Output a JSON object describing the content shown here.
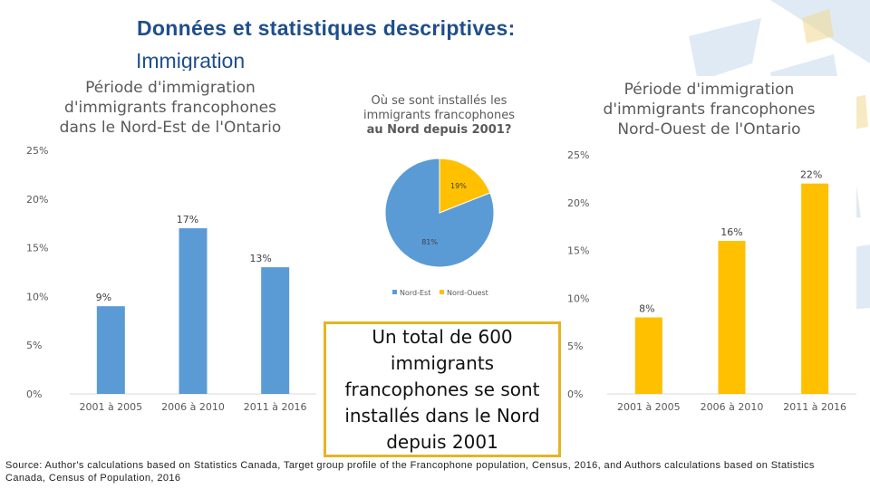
{
  "slide": {
    "title": "Données et statistiques descriptives:",
    "subtitle": "Immigration"
  },
  "callout": {
    "text": "Un total de 600 immigrants francophones se sont installés dans le Nord depuis 2001"
  },
  "source": {
    "text": "Source: Author's calculations based on Statistics Canada, Target group profile of the Francophone population, Census, 2016, and Authors calculations based on Statistics Canada, Census of Population, 2016"
  },
  "colors": {
    "blue": "#5b9bd5",
    "yellow": "#ffc000",
    "title": "#1f4e8c",
    "callout_border": "#e6b422"
  },
  "chart_data": [
    {
      "type": "bar",
      "title": "Période d'immigration d'immigrants francophones dans le Nord-Est de l'Ontario",
      "title_lines": [
        "Période d'immigration",
        "d'immigrants francophones",
        "dans le Nord-Est de l'Ontario"
      ],
      "categories": [
        "2001 à 2005",
        "2006 à 2010",
        "2011 à 2016"
      ],
      "values": [
        9,
        17,
        13
      ],
      "data_labels": [
        "9%",
        "17%",
        "13%"
      ],
      "ylim": [
        0,
        25
      ],
      "yticks": [
        0,
        5,
        10,
        15,
        20,
        25
      ],
      "ytick_labels": [
        "0%",
        "5%",
        "10%",
        "15%",
        "20%",
        "25%"
      ],
      "color": "#5b9bd5",
      "grid": false
    },
    {
      "type": "pie",
      "title": "Où se sont installés les immigrants francophones au Nord depuis 2001?",
      "title_lines": [
        "Où se sont installés les",
        "immigrants francophones",
        "au Nord depuis 2001?"
      ],
      "labels": [
        "Nord-Est",
        "Nord-Ouest"
      ],
      "values": [
        81,
        19
      ],
      "data_labels": [
        "81%",
        "19%"
      ],
      "colors": [
        "#5b9bd5",
        "#ffc000"
      ],
      "legend": "bottom"
    },
    {
      "type": "bar",
      "title": "Période d'immigration d'immigrants francophones Nord-Ouest de l'Ontario",
      "title_lines": [
        "Période d'immigration",
        "d'immigrants francophones",
        "Nord-Ouest de l'Ontario"
      ],
      "categories": [
        "2001 à 2005",
        "2006 à 2010",
        "2011 à 2016"
      ],
      "values": [
        8,
        16,
        22
      ],
      "data_labels": [
        "8%",
        "16%",
        "22%"
      ],
      "ylim": [
        0,
        25
      ],
      "yticks": [
        0,
        5,
        10,
        15,
        20,
        25
      ],
      "ytick_labels": [
        "0%",
        "5%",
        "10%",
        "15%",
        "20%",
        "25%"
      ],
      "color": "#ffc000",
      "grid": false
    }
  ]
}
